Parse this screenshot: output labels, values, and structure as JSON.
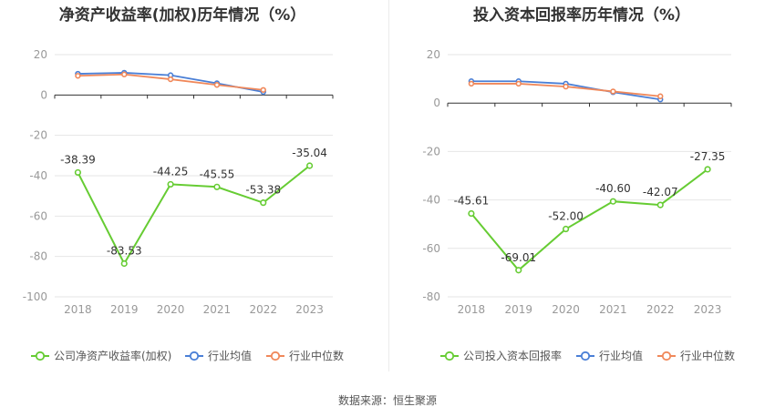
{
  "source": "数据来源：恒生聚源",
  "colors": {
    "company": "#66cc33",
    "industry_avg": "#4a7fd6",
    "industry_median": "#f0885a",
    "grid": "#e6e6e6",
    "axis": "#333333"
  },
  "chart_data": [
    {
      "type": "line",
      "title": "净资产收益率(加权)历年情况（%）",
      "categories": [
        "2018",
        "2019",
        "2020",
        "2021",
        "2022",
        "2023"
      ],
      "ylim": [
        -100,
        20
      ],
      "yticks": [
        20,
        0,
        -20,
        -40,
        -60,
        -80,
        -100
      ],
      "grid": true,
      "legend_position": "bottom",
      "series": [
        {
          "name": "公司净资产收益率(加权)",
          "role": "company",
          "values": [
            -38.39,
            -83.53,
            -44.25,
            -45.55,
            -53.38,
            -35.04
          ],
          "labels": [
            "-38.39",
            "-83.53",
            "-44.25",
            "-45.55",
            "-53.38",
            "-35.04"
          ]
        },
        {
          "name": "行业均值",
          "role": "industry_avg",
          "values": [
            10.5,
            11.0,
            9.8,
            5.8,
            1.5,
            null
          ]
        },
        {
          "name": "行业中位数",
          "role": "industry_median",
          "values": [
            9.5,
            10.2,
            7.8,
            5.0,
            2.5,
            null
          ]
        }
      ]
    },
    {
      "type": "line",
      "title": "投入资本回报率历年情况（%）",
      "categories": [
        "2018",
        "2019",
        "2020",
        "2021",
        "2022",
        "2023"
      ],
      "ylim": [
        -80,
        20
      ],
      "yticks": [
        20,
        0,
        -20,
        -40,
        -60,
        -80
      ],
      "grid": true,
      "legend_position": "bottom",
      "series": [
        {
          "name": "公司投入资本回报率",
          "role": "company",
          "values": [
            -45.61,
            -69.01,
            -52.0,
            -40.6,
            -42.07,
            -27.35
          ],
          "labels": [
            "-45.61",
            "-69.01",
            "-52.00",
            "-40.60",
            "-42.07",
            "-27.35"
          ]
        },
        {
          "name": "行业均值",
          "role": "industry_avg",
          "values": [
            9.0,
            9.0,
            8.0,
            4.5,
            1.5,
            null
          ]
        },
        {
          "name": "行业中位数",
          "role": "industry_median",
          "values": [
            8.0,
            8.0,
            6.8,
            4.8,
            2.8,
            null
          ]
        }
      ]
    }
  ]
}
